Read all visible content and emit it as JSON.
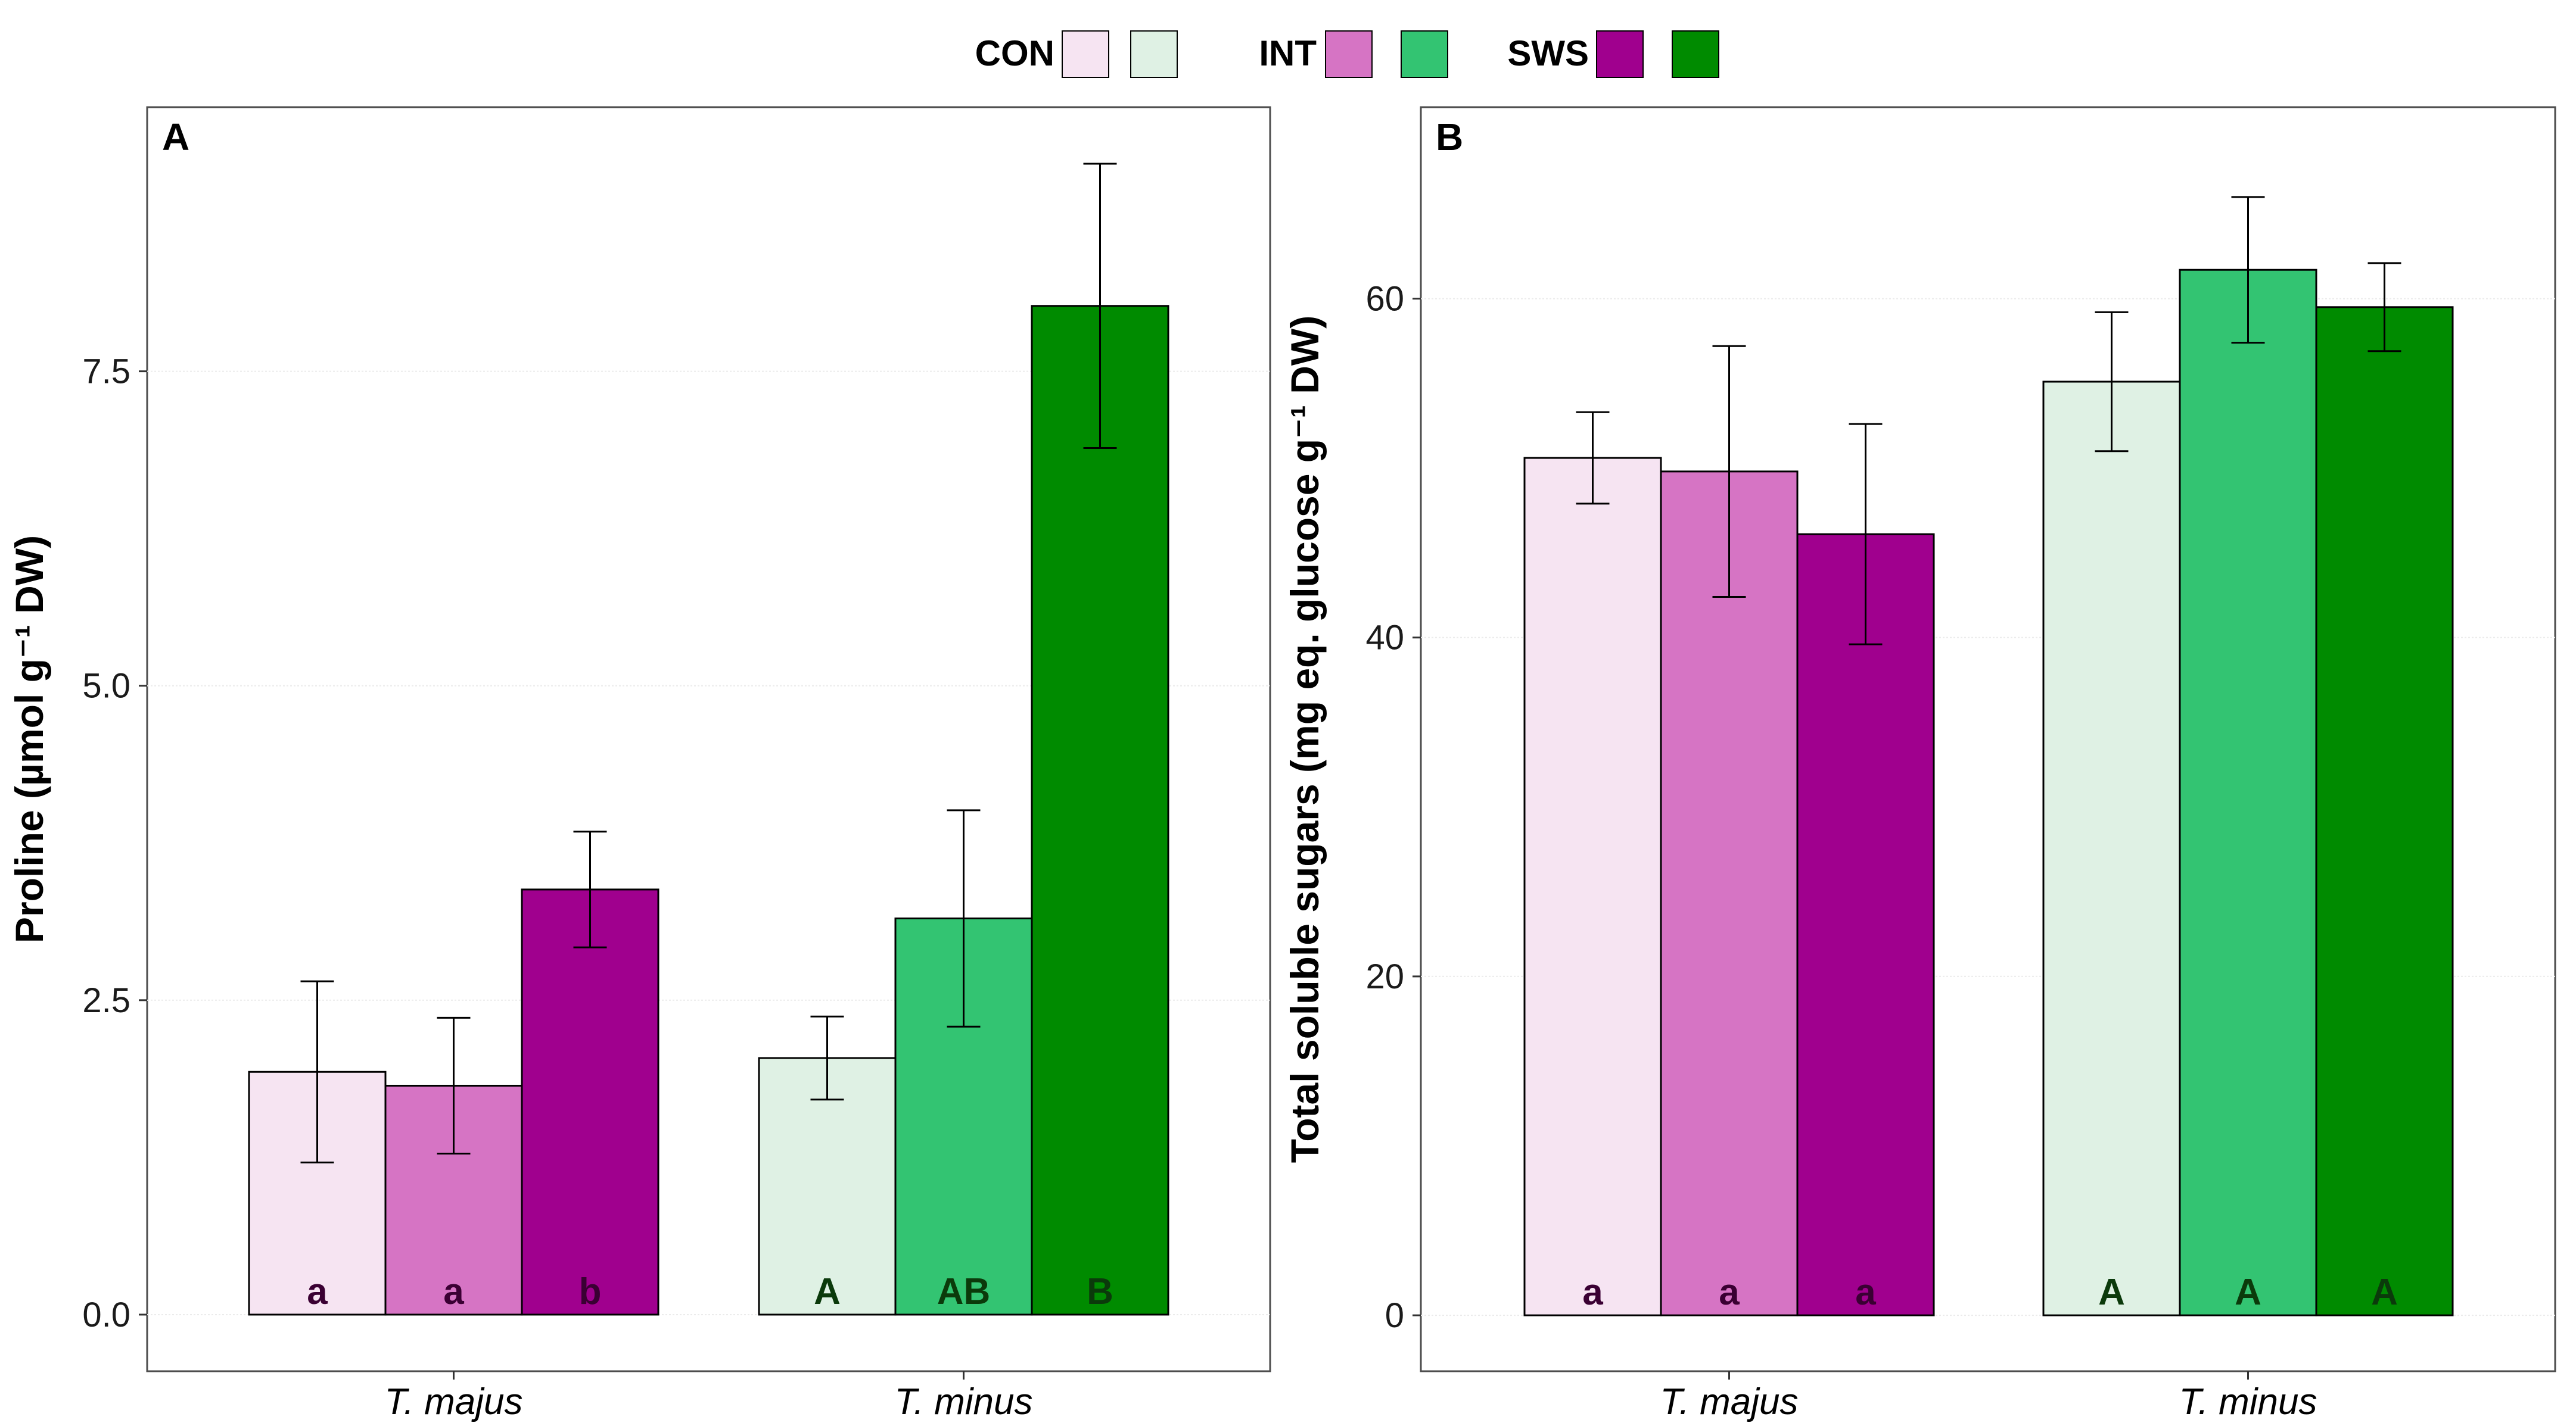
{
  "legend": {
    "items": [
      {
        "label": "CON",
        "colors": [
          "#f6e4f2",
          "#dff1e4"
        ]
      },
      {
        "label": "INT",
        "colors": [
          "#d674c4",
          "#33c472"
        ]
      },
      {
        "label": "SWS",
        "colors": [
          "#a0008e",
          "#008b00"
        ]
      }
    ]
  },
  "chart_data": [
    {
      "type": "bar",
      "panel_label": "A",
      "ylabel": "Proline (µmol g⁻¹ DW)",
      "ylim": [
        -0.45,
        9.6
      ],
      "yticks": [
        0.0,
        2.5,
        5.0,
        7.5
      ],
      "ytick_labels": [
        "0.0",
        "2.5",
        "5.0",
        "7.5"
      ],
      "grid": true,
      "categories": [
        "T. majus",
        "T. minus"
      ],
      "bars": [
        {
          "category": "T. majus",
          "treatment": "CON",
          "value": 1.93,
          "error": 0.72,
          "letter": "a",
          "color": "#f6e4f2",
          "letter_color": "#3a0033"
        },
        {
          "category": "T. majus",
          "treatment": "INT",
          "value": 1.82,
          "error": 0.54,
          "letter": "a",
          "color": "#d674c4",
          "letter_color": "#3a0033"
        },
        {
          "category": "T. majus",
          "treatment": "SWS",
          "value": 3.38,
          "error": 0.46,
          "letter": "b",
          "color": "#a0008e",
          "letter_color": "#3a0033"
        },
        {
          "category": "T. minus",
          "treatment": "CON",
          "value": 2.04,
          "error": 0.33,
          "letter": "A",
          "color": "#dff1e4",
          "letter_color": "#0b3a0b"
        },
        {
          "category": "T. minus",
          "treatment": "INT",
          "value": 3.15,
          "error": 0.86,
          "letter": "AB",
          "color": "#33c472",
          "letter_color": "#0b3a0b"
        },
        {
          "category": "T. minus",
          "treatment": "SWS",
          "value": 8.02,
          "error": 1.13,
          "letter": "B",
          "color": "#008b00",
          "letter_color": "#0b3a0b"
        }
      ]
    },
    {
      "type": "bar",
      "panel_label": "B",
      "ylabel": "Total soluble sugars (mg eq. glucose g⁻¹ DW)",
      "ylim": [
        -3.3,
        71.3
      ],
      "yticks": [
        0,
        20,
        40,
        60
      ],
      "ytick_labels": [
        "0",
        "20",
        "40",
        "60"
      ],
      "grid": true,
      "categories": [
        "T. majus",
        "T. minus"
      ],
      "bars": [
        {
          "category": "T. majus",
          "treatment": "CON",
          "value": 50.6,
          "error": 2.7,
          "letter": "a",
          "color": "#f6e4f2",
          "letter_color": "#3a0033"
        },
        {
          "category": "T. majus",
          "treatment": "INT",
          "value": 49.8,
          "error": 7.4,
          "letter": "a",
          "color": "#d674c4",
          "letter_color": "#3a0033"
        },
        {
          "category": "T. majus",
          "treatment": "SWS",
          "value": 46.1,
          "error": 6.5,
          "letter": "a",
          "color": "#a0008e",
          "letter_color": "#3a0033"
        },
        {
          "category": "T. minus",
          "treatment": "CON",
          "value": 55.1,
          "error": 4.1,
          "letter": "A",
          "color": "#dff1e4",
          "letter_color": "#0b3a0b"
        },
        {
          "category": "T. minus",
          "treatment": "INT",
          "value": 61.7,
          "error": 4.3,
          "letter": "A",
          "color": "#33c472",
          "letter_color": "#0b3a0b"
        },
        {
          "category": "T. minus",
          "treatment": "SWS",
          "value": 59.5,
          "error": 2.6,
          "letter": "A",
          "color": "#008b00",
          "letter_color": "#0b3a0b"
        }
      ]
    }
  ]
}
